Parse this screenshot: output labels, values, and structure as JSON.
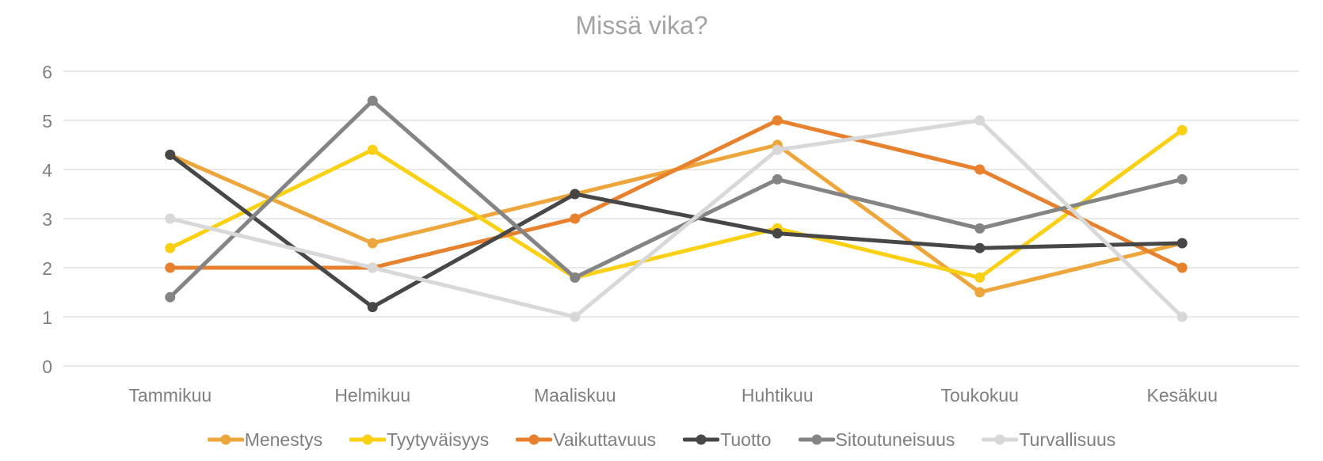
{
  "chart_data": {
    "type": "line",
    "title": "Missä vika?",
    "categories": [
      "Tammikuu",
      "Helmikuu",
      "Maaliskuu",
      "Huhtikuu",
      "Toukokuu",
      "Kesäkuu"
    ],
    "series": [
      {
        "name": "Menestys",
        "color": "#EDA63C",
        "values": [
          4.3,
          2.5,
          3.5,
          4.5,
          1.5,
          2.5
        ]
      },
      {
        "name": "Tyytyväisyys",
        "color": "#FAD015",
        "values": [
          2.4,
          4.4,
          1.8,
          2.8,
          1.8,
          4.8
        ]
      },
      {
        "name": "Vaikuttavuus",
        "color": "#E8812D",
        "values": [
          2,
          2,
          3,
          5,
          4,
          2
        ]
      },
      {
        "name": "Tuotto",
        "color": "#474747",
        "values": [
          4.3,
          1.2,
          3.5,
          2.7,
          2.4,
          2.5
        ]
      },
      {
        "name": "Sitoutuneisuus",
        "color": "#848484",
        "values": [
          1.4,
          5.4,
          1.8,
          3.8,
          2.8,
          3.8
        ]
      },
      {
        "name": "Turvallisuus",
        "color": "#D8D8D8",
        "values": [
          3,
          2,
          1,
          4.4,
          5,
          1
        ]
      }
    ],
    "ylim": [
      0,
      6
    ],
    "yticks": [
      0,
      1,
      2,
      3,
      4,
      5,
      6
    ],
    "grid": "horizontal",
    "legend_position": "bottom",
    "title_color": "#A3A3A3",
    "axis_label_color": "#7F7F7F",
    "gridline_color": "#E2E2E2",
    "background": "#FFFFFF"
  }
}
